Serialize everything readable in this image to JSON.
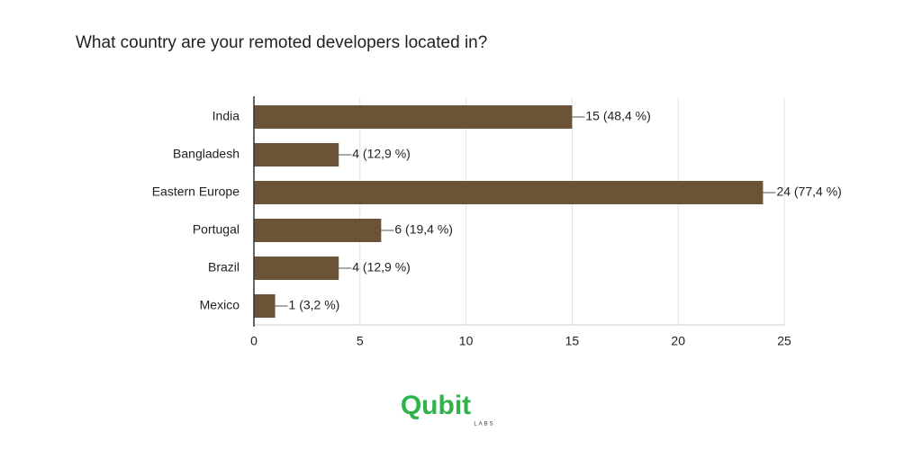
{
  "chart_data": {
    "type": "bar",
    "orientation": "horizontal",
    "title": "What country are your remoted developers located in?",
    "categories": [
      "India",
      "Bangladesh",
      "Eastern Europe",
      "Portugal",
      "Brazil",
      "Mexico"
    ],
    "values": [
      15,
      4,
      24,
      6,
      4,
      1
    ],
    "value_labels": [
      "15 (48,4 %)",
      "4 (12,9 %)",
      "24 (77,4 %)",
      "6 (19,4 %)",
      "4 (12,9 %)",
      "1 (3,2 %)"
    ],
    "color": "#6a5337",
    "xlim": [
      0,
      25
    ],
    "xticks": [
      0,
      5,
      10,
      15,
      20,
      25
    ],
    "grid": true
  },
  "logo": {
    "name": "Qubit",
    "sub": "LABS"
  }
}
